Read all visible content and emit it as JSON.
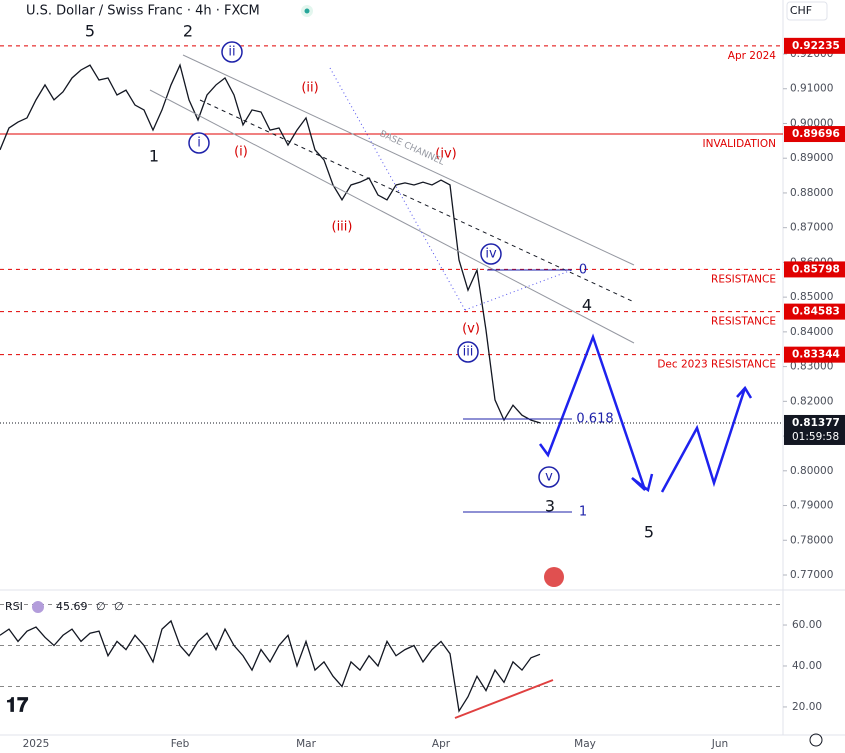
{
  "header": {
    "title": "U.S. Dollar / Swiss Franc · 4h · FXCM",
    "currency": "CHF"
  },
  "chart_data": [
    {
      "type": "line",
      "color": "#131722",
      "categories": [
        null,
        null,
        null,
        null,
        "2025",
        null,
        null,
        null,
        null,
        null,
        null,
        null,
        null,
        null,
        null,
        null,
        null,
        null,
        null,
        null,
        "Feb",
        null,
        null,
        null,
        null,
        null,
        null,
        null,
        null,
        null,
        null,
        null,
        null,
        null,
        "Mar",
        null,
        null,
        null,
        null,
        null,
        null,
        null,
        null,
        null,
        null,
        null,
        null,
        null,
        null,
        "Apr",
        null,
        null,
        null,
        null,
        null,
        null,
        null,
        null,
        null,
        null,
        null,
        null,
        null,
        null,
        null,
        "May",
        null,
        null,
        null,
        null,
        null,
        null,
        null,
        null,
        null,
        null,
        null,
        null,
        null,
        null,
        "Jun",
        null,
        null,
        null,
        null,
        null,
        null
      ],
      "values": [
        0.8924,
        0.8987,
        0.9004,
        0.9016,
        0.9068,
        0.9111,
        0.9068,
        0.9091,
        0.9131,
        0.9154,
        0.9168,
        0.9125,
        0.9131,
        0.9082,
        0.9096,
        0.9053,
        0.9039,
        0.8981,
        0.9039,
        0.9111,
        0.9168,
        0.9068,
        0.901,
        0.9082,
        0.9111,
        0.9131,
        0.9082,
        0.8996,
        0.9039,
        0.9033,
        0.8981,
        0.8987,
        0.8938,
        0.8981,
        0.9016,
        0.8924,
        0.8895,
        0.8823,
        0.878,
        0.8823,
        0.8831,
        0.8843,
        0.8794,
        0.878,
        0.8823,
        0.8829,
        0.8823,
        0.8831,
        0.8823,
        0.8837,
        0.8823,
        0.8607,
        0.852,
        0.8578,
        0.8405,
        0.8204,
        0.8146,
        0.8189,
        0.816,
        0.8146,
        0.8138,
        null,
        null,
        null,
        null,
        null,
        null,
        null,
        null,
        null,
        null,
        null,
        null,
        null,
        null,
        null,
        null,
        null,
        null,
        null,
        null,
        null,
        null,
        null,
        null,
        null,
        null
      ],
      "ylim": [
        0.76568,
        0.93555
      ],
      "yticks": [
        {
          "value": 0.77,
          "label": "0.77000"
        },
        {
          "value": 0.78,
          "label": "0.78000"
        },
        {
          "value": 0.79,
          "label": "0.79000"
        },
        {
          "value": 0.8,
          "label": "0.80000"
        },
        {
          "value": 0.81,
          "label": "0.81000"
        },
        {
          "value": 0.82,
          "label": "0.82000"
        },
        {
          "value": 0.83,
          "label": "0.83000"
        },
        {
          "value": 0.84,
          "label": "0.84000"
        },
        {
          "value": 0.85,
          "label": "0.85000"
        },
        {
          "value": 0.86,
          "label": "0.86000"
        },
        {
          "value": 0.87,
          "label": "0.87000"
        },
        {
          "value": 0.88,
          "label": "0.88000"
        },
        {
          "value": 0.89,
          "label": "0.89000"
        },
        {
          "value": 0.9,
          "label": "0.90000"
        },
        {
          "value": 0.91,
          "label": "0.91000"
        },
        {
          "value": 0.92,
          "label": "0.92000"
        }
      ],
      "levels": [
        {
          "value": 0.92235,
          "text": "Apr 2024",
          "style": "dashed"
        },
        {
          "value": 0.89696,
          "text": "INVALIDATION",
          "style": "solid"
        },
        {
          "value": 0.85798,
          "text": "RESISTANCE",
          "style": "dashed"
        },
        {
          "value": 0.84583,
          "text": "RESISTANCE",
          "style": "dashed"
        },
        {
          "value": 0.83344,
          "text": "Dec 2023 RESISTANCE",
          "style": "dashed"
        }
      ],
      "current": {
        "value": 0.81377,
        "countdown": "01:59:58"
      },
      "annotations": [
        {
          "text": "5",
          "color": "#131722",
          "circled": false
        },
        {
          "text": "2",
          "color": "#131722",
          "circled": false
        },
        {
          "text": "ii",
          "color": "#1e22aa",
          "circled": true
        },
        {
          "text": "(ii)",
          "color": "#d50000",
          "circled": false
        },
        {
          "text": "1",
          "color": "#131722",
          "circled": false
        },
        {
          "text": "i",
          "color": "#1e22aa",
          "circled": true
        },
        {
          "text": "(i)",
          "color": "#d50000",
          "circled": false
        },
        {
          "text": "(iii)",
          "color": "#d50000",
          "circled": false
        },
        {
          "text": "(iv)",
          "color": "#d50000",
          "circled": false
        },
        {
          "text": "iv",
          "color": "#1e22aa",
          "circled": true
        },
        {
          "text": "(v)",
          "color": "#d50000",
          "circled": false
        },
        {
          "text": "iii",
          "color": "#1e22aa",
          "circled": true
        },
        {
          "text": "v",
          "color": "#1e22aa",
          "circled": true
        },
        {
          "text": "3",
          "color": "#131722",
          "circled": false
        },
        {
          "text": "4",
          "color": "#131722",
          "circled": false
        },
        {
          "text": "5",
          "color": "#131722",
          "circled": false
        },
        {
          "text": "BASE CHANNEL",
          "color": "#9598a1",
          "circled": false
        },
        {
          "text": "0",
          "color": "#1e22aa",
          "circled": false
        },
        {
          "text": "0.618",
          "color": "#1e22aa",
          "circled": false
        },
        {
          "text": "1",
          "color": "#1e22aa",
          "circled": false
        }
      ]
    },
    {
      "type": "line",
      "title": "RSI",
      "value_label": "45.69",
      "extra": [
        "∅",
        "∅"
      ],
      "color": "#131722",
      "values": [
        55,
        58,
        52,
        57,
        59,
        54,
        50,
        55,
        58,
        52,
        56,
        57,
        45,
        52,
        48,
        55,
        50,
        42,
        58,
        62,
        50,
        45,
        52,
        56,
        48,
        58,
        50,
        45,
        38,
        48,
        42,
        50,
        55,
        40,
        52,
        38,
        42,
        35,
        30,
        42,
        38,
        45,
        40,
        52,
        45,
        48,
        50,
        42,
        48,
        52,
        46,
        18,
        25,
        35,
        28,
        38,
        32,
        42,
        38,
        44,
        45.69
      ],
      "ylim": [
        6.3,
        77.1
      ],
      "yticks": [
        {
          "value": 20,
          "label": "20.00"
        },
        {
          "value": 40,
          "label": "40.00"
        },
        {
          "value": 60,
          "label": "60.00"
        }
      ],
      "bands": [
        70,
        50,
        30
      ]
    }
  ]
}
